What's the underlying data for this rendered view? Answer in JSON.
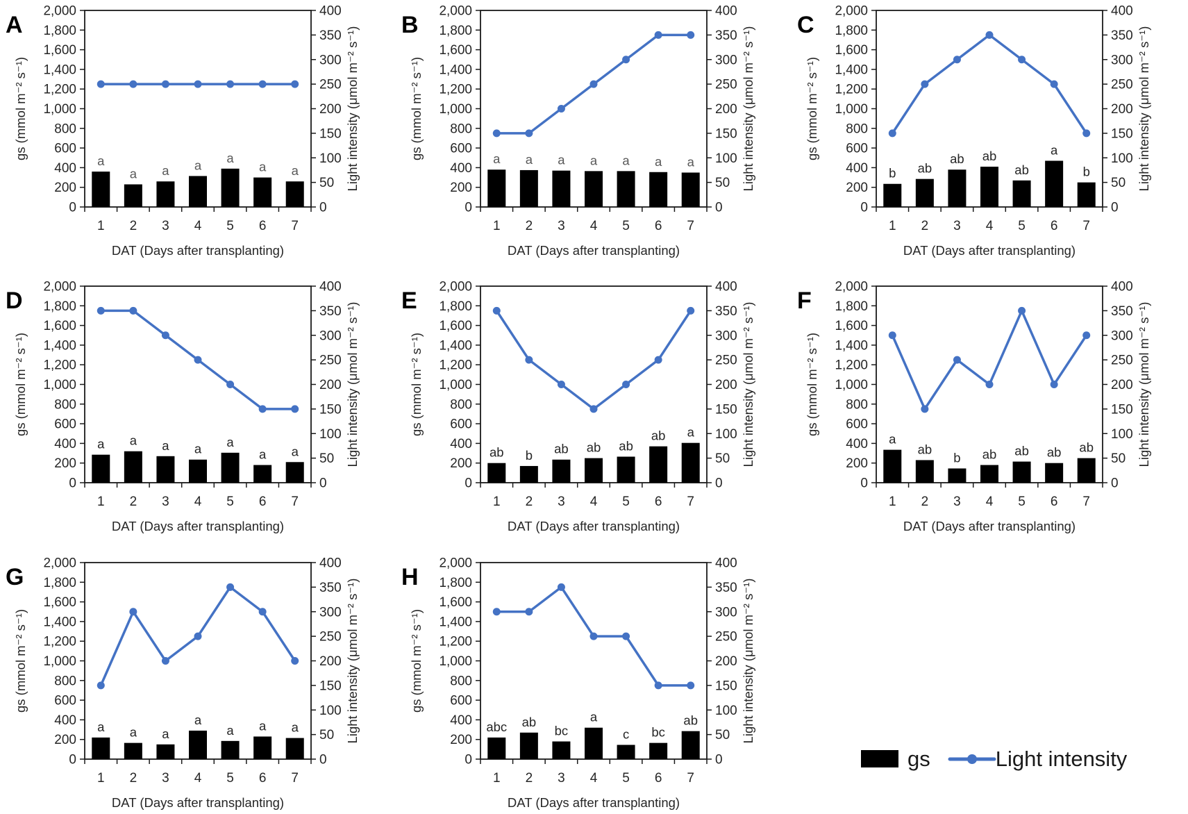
{
  "legend": {
    "gs_label": "gs",
    "light_label": "Light intensity",
    "bar_color": "#000000",
    "line_color": "#4472C4"
  },
  "chart_data": [
    {
      "panel_label": "A",
      "type": "bar+line",
      "categories": [
        "1",
        "2",
        "3",
        "4",
        "5",
        "6",
        "7"
      ],
      "xlabel": "DAT (Days after transplanting)",
      "ylabel_left": "gs (mmol m⁻² s⁻¹)",
      "ylabel_right": "Light intensity (μmol m⁻² s⁻¹)",
      "ylim_left": [
        0,
        2000
      ],
      "ytick_step_left": 200,
      "ylim_right": [
        0,
        400
      ],
      "ytick_step_right": 50,
      "sig_letter_color": "#595959",
      "series": [
        {
          "name": "gs",
          "type": "bar",
          "axis": "left",
          "color": "#000000",
          "values": [
            360,
            230,
            260,
            315,
            390,
            300,
            260
          ],
          "sig_letters": [
            "a",
            "a",
            "a",
            "a",
            "a",
            "a",
            "a"
          ]
        },
        {
          "name": "Light intensity",
          "type": "line",
          "axis": "right",
          "color": "#4472C4",
          "values": [
            250,
            250,
            250,
            250,
            250,
            250,
            250
          ]
        }
      ]
    },
    {
      "panel_label": "B",
      "type": "bar+line",
      "categories": [
        "1",
        "2",
        "3",
        "4",
        "5",
        "6",
        "7"
      ],
      "xlabel": "DAT (Days after transplanting)",
      "ylabel_left": "gs (mmol m⁻² s⁻¹)",
      "ylabel_right": "Light intensity (μmol m⁻² s⁻¹)",
      "ylim_left": [
        0,
        2000
      ],
      "ytick_step_left": 200,
      "ylim_right": [
        0,
        400
      ],
      "ytick_step_right": 50,
      "sig_letter_color": "#595959",
      "series": [
        {
          "name": "gs",
          "type": "bar",
          "axis": "left",
          "color": "#000000",
          "values": [
            380,
            375,
            370,
            365,
            365,
            355,
            350
          ],
          "sig_letters": [
            "a",
            "a",
            "a",
            "a",
            "a",
            "a",
            "a"
          ]
        },
        {
          "name": "Light intensity",
          "type": "line",
          "axis": "right",
          "color": "#4472C4",
          "values": [
            150,
            150,
            200,
            250,
            300,
            350,
            350
          ]
        }
      ]
    },
    {
      "panel_label": "C",
      "type": "bar+line",
      "categories": [
        "1",
        "2",
        "3",
        "4",
        "5",
        "6",
        "7"
      ],
      "xlabel": "DAT (Days after transplanting)",
      "ylabel_left": "gs (mmol m⁻² s⁻¹)",
      "ylabel_right": "Light intensity (μmol m⁻² s⁻¹)",
      "ylim_left": [
        0,
        2000
      ],
      "ytick_step_left": 200,
      "ylim_right": [
        0,
        400
      ],
      "ytick_step_right": 50,
      "sig_letter_color": "#262626",
      "series": [
        {
          "name": "gs",
          "type": "bar",
          "axis": "left",
          "color": "#000000",
          "values": [
            235,
            285,
            380,
            410,
            270,
            470,
            250
          ],
          "sig_letters": [
            "b",
            "ab",
            "ab",
            "ab",
            "ab",
            "a",
            "b"
          ]
        },
        {
          "name": "Light intensity",
          "type": "line",
          "axis": "right",
          "color": "#4472C4",
          "values": [
            150,
            250,
            300,
            350,
            300,
            250,
            150
          ]
        }
      ]
    },
    {
      "panel_label": "D",
      "type": "bar+line",
      "categories": [
        "1",
        "2",
        "3",
        "4",
        "5",
        "6",
        "7"
      ],
      "xlabel": "DAT (Days after transplanting)",
      "ylabel_left": "gs (mmol m⁻² s⁻¹)",
      "ylabel_right": "Light intensity (μmol m⁻² s⁻¹)",
      "ylim_left": [
        0,
        2000
      ],
      "ytick_step_left": 200,
      "ylim_right": [
        0,
        400
      ],
      "ytick_step_right": 50,
      "sig_letter_color": "#262626",
      "series": [
        {
          "name": "gs",
          "type": "bar",
          "axis": "left",
          "color": "#000000",
          "values": [
            285,
            320,
            270,
            235,
            305,
            180,
            210
          ],
          "sig_letters": [
            "a",
            "a",
            "a",
            "a",
            "a",
            "a",
            "a"
          ]
        },
        {
          "name": "Light intensity",
          "type": "line",
          "axis": "right",
          "color": "#4472C4",
          "values": [
            350,
            350,
            300,
            250,
            200,
            150,
            150
          ]
        }
      ]
    },
    {
      "panel_label": "E",
      "type": "bar+line",
      "categories": [
        "1",
        "2",
        "3",
        "4",
        "5",
        "6",
        "7"
      ],
      "xlabel": "DAT (Days after transplanting)",
      "ylabel_left": "gs (mmol m⁻² s⁻¹)",
      "ylabel_right": "Light intensity (μmol m⁻² s⁻¹)",
      "ylim_left": [
        0,
        2000
      ],
      "ytick_step_left": 200,
      "ylim_right": [
        0,
        400
      ],
      "ytick_step_right": 50,
      "sig_letter_color": "#262626",
      "series": [
        {
          "name": "gs",
          "type": "bar",
          "axis": "left",
          "color": "#000000",
          "values": [
            200,
            170,
            235,
            250,
            265,
            370,
            405
          ],
          "sig_letters": [
            "ab",
            "b",
            "ab",
            "ab",
            "ab",
            "ab",
            "a"
          ]
        },
        {
          "name": "Light intensity",
          "type": "line",
          "axis": "right",
          "color": "#4472C4",
          "values": [
            350,
            250,
            200,
            150,
            200,
            250,
            350
          ]
        }
      ]
    },
    {
      "panel_label": "F",
      "type": "bar+line",
      "categories": [
        "1",
        "2",
        "3",
        "4",
        "5",
        "6",
        "7"
      ],
      "xlabel": "DAT (Days after transplanting)",
      "ylabel_left": "gs (mmol m⁻² s⁻¹)",
      "ylabel_right": "Light intensity (μmol m⁻² s⁻¹)",
      "ylim_left": [
        0,
        2000
      ],
      "ytick_step_left": 200,
      "ylim_right": [
        0,
        400
      ],
      "ytick_step_right": 50,
      "sig_letter_color": "#262626",
      "series": [
        {
          "name": "gs",
          "type": "bar",
          "axis": "left",
          "color": "#000000",
          "values": [
            335,
            230,
            145,
            180,
            215,
            200,
            250
          ],
          "sig_letters": [
            "a",
            "ab",
            "b",
            "ab",
            "ab",
            "ab",
            "ab"
          ]
        },
        {
          "name": "Light intensity",
          "type": "line",
          "axis": "right",
          "color": "#4472C4",
          "values": [
            300,
            150,
            250,
            200,
            350,
            200,
            300
          ]
        }
      ]
    },
    {
      "panel_label": "G",
      "type": "bar+line",
      "categories": [
        "1",
        "2",
        "3",
        "4",
        "5",
        "6",
        "7"
      ],
      "xlabel": "DAT (Days after transplanting)",
      "ylabel_left": "gs (mmol m⁻² s⁻¹)",
      "ylabel_right": "Light intensity (μmol m⁻² s⁻¹)",
      "ylim_left": [
        0,
        2000
      ],
      "ytick_step_left": 200,
      "ylim_right": [
        0,
        400
      ],
      "ytick_step_right": 50,
      "sig_letter_color": "#262626",
      "series": [
        {
          "name": "gs",
          "type": "bar",
          "axis": "left",
          "color": "#000000",
          "values": [
            220,
            165,
            150,
            290,
            185,
            230,
            215
          ],
          "sig_letters": [
            "a",
            "a",
            "a",
            "a",
            "a",
            "a",
            "a"
          ]
        },
        {
          "name": "Light intensity",
          "type": "line",
          "axis": "right",
          "color": "#4472C4",
          "values": [
            150,
            300,
            200,
            250,
            350,
            300,
            200
          ]
        }
      ]
    },
    {
      "panel_label": "H",
      "type": "bar+line",
      "categories": [
        "1",
        "2",
        "3",
        "4",
        "5",
        "6",
        "7"
      ],
      "xlabel": "DAT (Days after transplanting)",
      "ylabel_left": "gs (mmol m⁻² s⁻¹)",
      "ylabel_right": "Light intensity (μmol m⁻² s⁻¹)",
      "ylim_left": [
        0,
        2000
      ],
      "ytick_step_left": 200,
      "ylim_right": [
        0,
        400
      ],
      "ytick_step_right": 50,
      "sig_letter_color": "#262626",
      "series": [
        {
          "name": "gs",
          "type": "bar",
          "axis": "left",
          "color": "#000000",
          "values": [
            220,
            270,
            180,
            320,
            145,
            165,
            285
          ],
          "sig_letters": [
            "abc",
            "ab",
            "bc",
            "a",
            "c",
            "bc",
            "ab"
          ]
        },
        {
          "name": "Light intensity",
          "type": "line",
          "axis": "right",
          "color": "#4472C4",
          "values": [
            300,
            300,
            350,
            250,
            250,
            150,
            150
          ]
        }
      ]
    }
  ]
}
